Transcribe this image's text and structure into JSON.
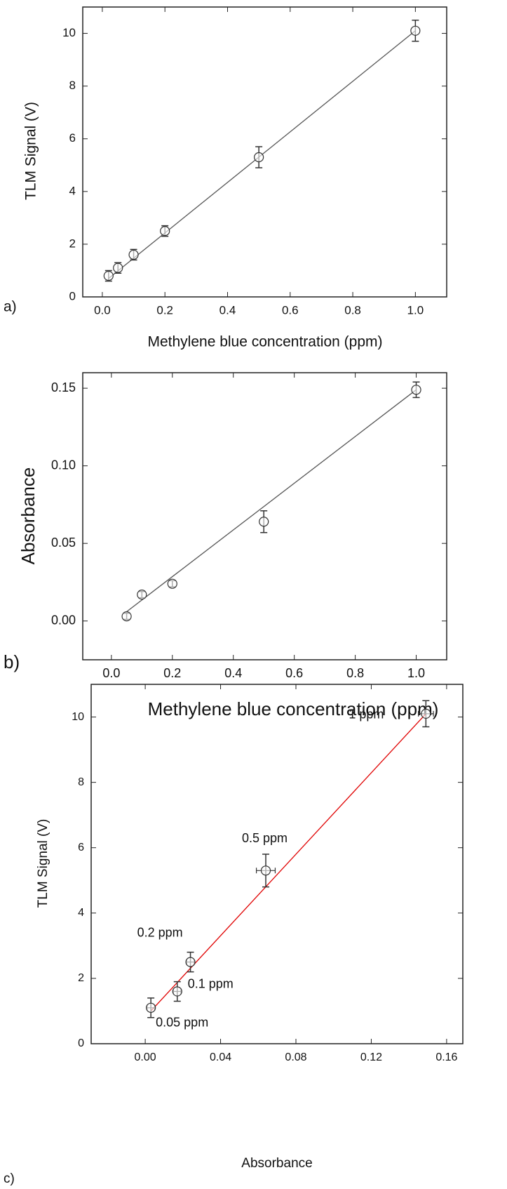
{
  "chart_data": [
    {
      "type": "scatter",
      "panel": "a)",
      "xlabel": "Methylene blue concentration (ppm)",
      "ylabel": "TLM Signal (V)",
      "xlim": [
        -0.0625,
        1.1
      ],
      "ylim": [
        0,
        11
      ],
      "xticks": [
        {
          "value": 0,
          "label": "0.0"
        },
        0.2,
        0.4,
        0.6,
        0.8,
        {
          "value": 1,
          "label": "1.0"
        }
      ],
      "yticks": [
        0,
        2,
        4,
        6,
        8,
        10
      ],
      "x": [
        0.02,
        0.05,
        0.1,
        0.2,
        0.5,
        1.0
      ],
      "series": [
        {
          "color": "#333333",
          "values": [
            0.8,
            1.1,
            1.6,
            2.5,
            5.3,
            10.1
          ],
          "y_err": [
            0.2,
            0.2,
            0.2,
            0.2,
            0.4,
            0.4
          ]
        }
      ],
      "fit": {
        "color": "#555555",
        "x": [
          0.02,
          1.0
        ],
        "values": [
          0.7,
          10.1
        ]
      }
    },
    {
      "type": "scatter",
      "panel": "b)",
      "xlabel": "Methylene blue concentration (ppm)",
      "ylabel": "Absorbance",
      "xlim": [
        -0.094,
        1.1
      ],
      "ylim": [
        -0.025,
        0.16
      ],
      "xticks": [
        {
          "value": 0,
          "label": "0.0"
        },
        0.2,
        0.4,
        0.6,
        0.8,
        {
          "value": 1,
          "label": "1.0"
        }
      ],
      "yticks": [
        {
          "value": 0,
          "label": "0.00"
        },
        0.05,
        {
          "value": 0.1,
          "label": "0.10"
        },
        0.15
      ],
      "x": [
        0.05,
        0.1,
        0.2,
        0.5,
        1.0
      ],
      "series": [
        {
          "color": "#333333",
          "values": [
            0.003,
            0.017,
            0.024,
            0.064,
            0.149
          ],
          "y_err": [
            0.002,
            0.002,
            0.002,
            0.007,
            0.005
          ]
        }
      ],
      "fit": {
        "color": "#555555",
        "x": [
          0.05,
          1.0
        ],
        "values": [
          0.006,
          0.149
        ]
      }
    },
    {
      "type": "scatter",
      "panel": "c)",
      "xlabel": "Absorbance",
      "ylabel": "TLM Signal (V)",
      "xlim": [
        -0.0287,
        0.1686
      ],
      "ylim": [
        0,
        11
      ],
      "xticks": [
        {
          "value": 0,
          "label": "0.00"
        },
        0.04,
        0.08,
        0.12,
        0.16
      ],
      "yticks": [
        0,
        2,
        4,
        6,
        8,
        10
      ],
      "x": [
        0.003,
        0.017,
        0.024,
        0.064,
        0.149
      ],
      "x_err": [
        0.002,
        0.002,
        0.002,
        0.005,
        0.004
      ],
      "series": [
        {
          "color": "#333333",
          "values": [
            1.1,
            1.6,
            2.5,
            5.3,
            10.1
          ],
          "y_err": [
            0.3,
            0.3,
            0.3,
            0.5,
            0.4
          ]
        }
      ],
      "point_labels": [
        "0.05 ppm",
        "0.1 ppm",
        "0.2 ppm",
        "0.5 ppm",
        "1 ppm"
      ],
      "fit": {
        "color": "#e00000",
        "x": [
          0.003,
          0.149
        ],
        "values": [
          1.0,
          10.1
        ]
      }
    }
  ]
}
